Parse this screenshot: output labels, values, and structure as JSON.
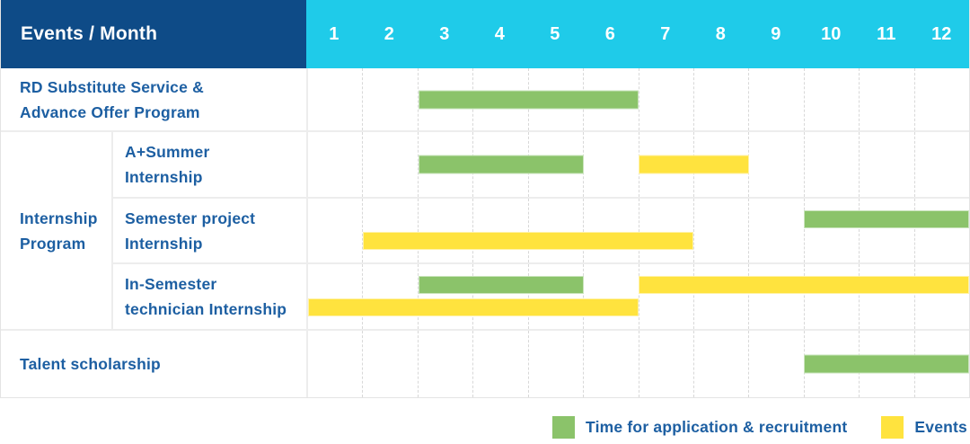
{
  "header": {
    "title": "Events / Month"
  },
  "colors": {
    "navy": "#0e4b87",
    "cyan": "#1fcbe9",
    "green": "#8bc36a",
    "yellow": "#ffe33e",
    "label_text": "#1d5fa2",
    "gridline": "#d8d8d8"
  },
  "chart_data": {
    "type": "bar",
    "subtype": "gantt-timeline",
    "title": "Events / Month",
    "xlabel": "Month",
    "x_axis": {
      "ticks": [
        "1",
        "2",
        "3",
        "4",
        "5",
        "6",
        "7",
        "8",
        "9",
        "10",
        "11",
        "12"
      ],
      "range": [
        1,
        12
      ],
      "grid": "dashed-vertical"
    },
    "series": {
      "application": {
        "label": "Time for application & recruitment",
        "color": "#8bc36a"
      },
      "events": {
        "label": "Events",
        "color": "#ffe33e"
      }
    },
    "group_label": "Internship Program",
    "rows": [
      {
        "group": null,
        "label": "RD Substitute Service &\nAdvance Offer Program",
        "bars": [
          {
            "series": "application",
            "start": 3,
            "end": 6,
            "lane": "center"
          }
        ]
      },
      {
        "group": "Internship Program",
        "label": "A+Summer\nInternship",
        "bars": [
          {
            "series": "application",
            "start": 3,
            "end": 5,
            "lane": "center"
          },
          {
            "series": "events",
            "start": 7,
            "end": 8,
            "lane": "center"
          }
        ]
      },
      {
        "group": "Internship Program",
        "label": "Semester project\nInternship",
        "bars": [
          {
            "series": "application",
            "start": 10,
            "end": 12,
            "lane": "top"
          },
          {
            "series": "events",
            "start": 2,
            "end": 7,
            "lane": "bottom"
          }
        ]
      },
      {
        "group": "Internship Program",
        "label": "In-Semester\ntechnician Internship",
        "bars": [
          {
            "series": "application",
            "start": 3,
            "end": 5,
            "lane": "top"
          },
          {
            "series": "events",
            "start": 7,
            "end": 12,
            "lane": "top"
          },
          {
            "series": "events",
            "start": 1,
            "end": 6,
            "lane": "bottom"
          }
        ]
      },
      {
        "group": null,
        "label": "Talent scholarship",
        "bars": [
          {
            "series": "application",
            "start": 10,
            "end": 12,
            "lane": "center"
          }
        ]
      }
    ],
    "legend": {
      "position": "bottom-right",
      "items": [
        "application",
        "events"
      ]
    }
  }
}
